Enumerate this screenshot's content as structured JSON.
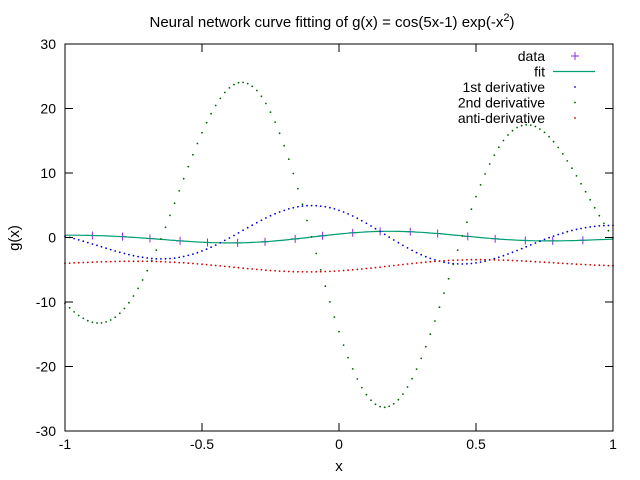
{
  "chart_data": {
    "type": "line",
    "title": {
      "main": "Neural network curve fitting of g(x) = cos(5x-1) exp(-x",
      "sup": "2",
      "end": ")"
    },
    "xlabel": "x",
    "ylabel": "g(x)",
    "xlim": [
      -1,
      1
    ],
    "ylim": [
      -30,
      30
    ],
    "xticks": [
      -1,
      -0.5,
      0,
      0.5,
      1
    ],
    "xtick_labels": [
      "-1",
      "-0.5",
      "0",
      "0.5",
      "1"
    ],
    "yticks": [
      -30,
      -20,
      -10,
      0,
      10,
      20,
      30
    ],
    "ytick_labels": [
      "-30",
      "-20",
      "-10",
      "0",
      "10",
      "20",
      "30"
    ],
    "grid": false,
    "legend_position": "top-right",
    "data_x": [
      -0.9,
      -0.79,
      -0.69,
      -0.58,
      -0.48,
      -0.37,
      -0.27,
      -0.16,
      -0.06,
      0.05,
      0.15,
      0.26,
      0.36,
      0.47,
      0.57,
      0.68,
      0.78,
      0.89
    ],
    "curve_samples": 121,
    "series": [
      {
        "name": "data",
        "kind": "points",
        "color": "#8a2be2"
      },
      {
        "name": "fit",
        "kind": "line",
        "color": "#009e73"
      },
      {
        "name": "1st derivative",
        "kind": "dots",
        "color": "#0000cc"
      },
      {
        "name": "2nd derivative",
        "kind": "dots",
        "color": "#006400"
      },
      {
        "name": "anti-derivative",
        "kind": "dots",
        "color": "#cc0000"
      }
    ]
  }
}
